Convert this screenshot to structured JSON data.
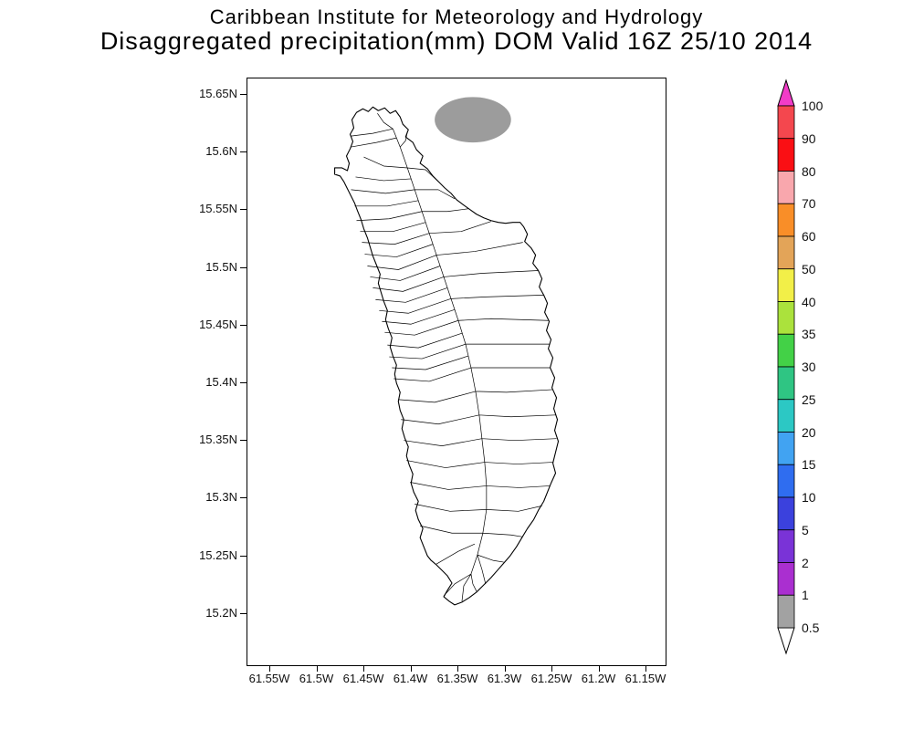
{
  "title": {
    "line1": "Caribbean Institute for Meteorology and Hydrology",
    "line2": "Disaggregated precipitation(mm) DOM Valid 16Z 25/10 2014"
  },
  "map": {
    "lat_labels": [
      "15.65N",
      "15.6N",
      "15.55N",
      "15.5N",
      "15.45N",
      "15.4N",
      "15.35N",
      "15.3N",
      "15.25N",
      "15.2N"
    ],
    "lon_labels": [
      "61.55W",
      "61.5W",
      "61.45W",
      "61.4W",
      "61.35W",
      "61.3W",
      "61.25W",
      "61.2W",
      "61.15W"
    ],
    "shaded_region_color": "#9c9c9c",
    "coastline_color": "#000000"
  },
  "colorbar": {
    "labels_top_to_bottom": [
      "100",
      "90",
      "80",
      "70",
      "60",
      "50",
      "40",
      "35",
      "30",
      "25",
      "20",
      "15",
      "10",
      "5",
      "2",
      "1",
      "0.5"
    ],
    "segments_top_to_bottom": [
      {
        "range": "90-100",
        "color": "#f4474e"
      },
      {
        "range": "80-90",
        "color": "#fa0f14"
      },
      {
        "range": "70-80",
        "color": "#f9a7ad"
      },
      {
        "range": "60-70",
        "color": "#f98e28"
      },
      {
        "range": "50-60",
        "color": "#e3a458"
      },
      {
        "range": "40-50",
        "color": "#f2ef48"
      },
      {
        "range": "35-40",
        "color": "#abe23c"
      },
      {
        "range": "30-35",
        "color": "#43d147"
      },
      {
        "range": "25-30",
        "color": "#2fc583"
      },
      {
        "range": "20-25",
        "color": "#2cc8c4"
      },
      {
        "range": "15-20",
        "color": "#41a3f2"
      },
      {
        "range": "10-15",
        "color": "#2f6df0"
      },
      {
        "range": "5-10",
        "color": "#3b41dd"
      },
      {
        "range": "2-5",
        "color": "#7a33d7"
      },
      {
        "range": "1-2",
        "color": "#aa2fd0"
      },
      {
        "range": "0.5-1",
        "color": "#a2a2a2"
      }
    ],
    "over_arrow_color": "#f23cc8",
    "under_arrow_color": "#ffffff"
  }
}
